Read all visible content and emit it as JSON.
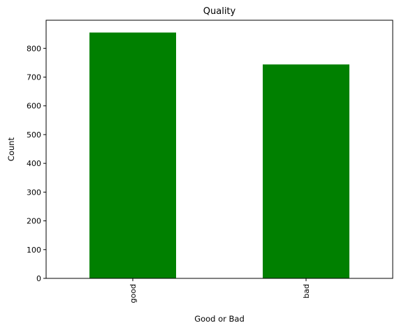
{
  "chart_data": {
    "type": "bar",
    "title": "Quality",
    "xlabel": "Good or Bad",
    "ylabel": "Count",
    "categories": [
      "good",
      "bad"
    ],
    "values": [
      855,
      744
    ],
    "ylim": [
      0,
      897.75
    ],
    "yticks": [
      0,
      100,
      200,
      300,
      400,
      500,
      600,
      700,
      800
    ],
    "bar_color": "#008000",
    "grid": false,
    "legend": "none"
  }
}
